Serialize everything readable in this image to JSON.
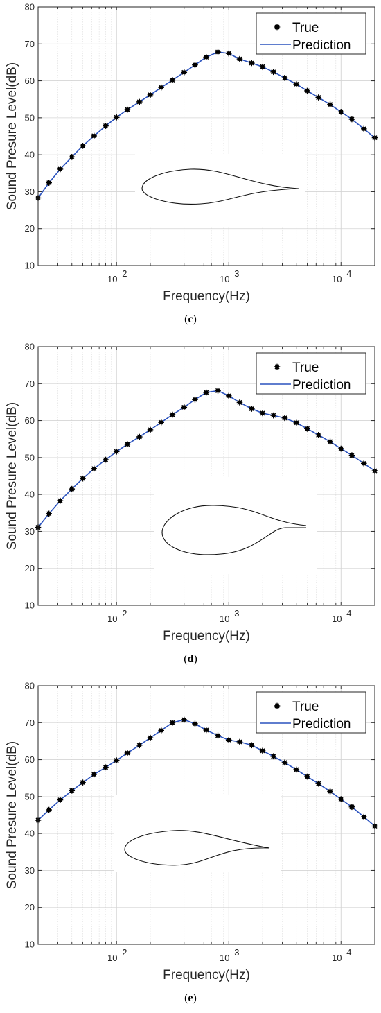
{
  "chart_data": [
    {
      "type": "line",
      "panel_label": "c",
      "xlabel": "Frequency(Hz)",
      "ylabel": "Sound Presure Level(dB)",
      "xscale": "log",
      "xlim": [
        20,
        20000
      ],
      "ylim": [
        10,
        80
      ],
      "yticks": [
        10,
        20,
        30,
        40,
        50,
        60,
        70,
        80
      ],
      "xticks": [
        {
          "value": 100,
          "label": "10",
          "exp": "2"
        },
        {
          "value": 1000,
          "label": "10",
          "exp": "3"
        },
        {
          "value": 10000,
          "label": "10",
          "exp": "4"
        }
      ],
      "grid": true,
      "legend_position": "top-right",
      "x": [
        20,
        25,
        31.5,
        40,
        50,
        63,
        80,
        100,
        125,
        160,
        200,
        250,
        315,
        400,
        500,
        630,
        800,
        1000,
        1250,
        1600,
        2000,
        2500,
        3150,
        4000,
        5000,
        6300,
        8000,
        10000,
        12500,
        16000,
        20000
      ],
      "series": [
        {
          "name": "True",
          "style": "markers",
          "color": "#000000",
          "values": [
            28.3,
            32.4,
            36.1,
            39.4,
            42.4,
            45.1,
            47.8,
            50.1,
            52.2,
            54.3,
            56.2,
            58.2,
            60.2,
            62.3,
            64.3,
            66.4,
            67.8,
            67.4,
            65.9,
            64.8,
            63.8,
            62.4,
            60.8,
            59.1,
            57.3,
            55.5,
            53.6,
            51.6,
            49.6,
            47.0,
            44.6
          ]
        },
        {
          "name": "Prediction",
          "style": "line",
          "color": "#2a52be",
          "values": [
            28.3,
            32.4,
            36.1,
            39.4,
            42.4,
            45.1,
            47.8,
            50.1,
            52.2,
            54.3,
            56.2,
            58.2,
            60.2,
            62.3,
            64.3,
            66.4,
            67.8,
            67.4,
            65.9,
            64.8,
            63.8,
            62.4,
            60.8,
            59.1,
            57.3,
            55.5,
            53.6,
            51.6,
            49.6,
            47.0,
            44.6
          ]
        }
      ]
    },
    {
      "type": "line",
      "panel_label": "d",
      "xlabel": "Frequency(Hz)",
      "ylabel": "Sound Presure Level(dB)",
      "xscale": "log",
      "xlim": [
        20,
        20000
      ],
      "ylim": [
        10,
        80
      ],
      "yticks": [
        10,
        20,
        30,
        40,
        50,
        60,
        70,
        80
      ],
      "xticks": [
        {
          "value": 100,
          "label": "10",
          "exp": "2"
        },
        {
          "value": 1000,
          "label": "10",
          "exp": "3"
        },
        {
          "value": 10000,
          "label": "10",
          "exp": "4"
        }
      ],
      "grid": true,
      "legend_position": "top-right",
      "x": [
        20,
        25,
        31.5,
        40,
        50,
        63,
        80,
        100,
        125,
        160,
        200,
        250,
        315,
        400,
        500,
        630,
        800,
        1000,
        1250,
        1600,
        2000,
        2500,
        3150,
        4000,
        5000,
        6300,
        8000,
        10000,
        12500,
        16000,
        20000
      ],
      "series": [
        {
          "name": "True",
          "style": "markers",
          "color": "#000000",
          "values": [
            31.1,
            34.8,
            38.3,
            41.5,
            44.3,
            47.0,
            49.4,
            51.6,
            53.6,
            55.6,
            57.5,
            59.5,
            61.6,
            63.6,
            65.7,
            67.6,
            68.1,
            66.7,
            64.9,
            63.2,
            62.0,
            61.4,
            60.7,
            59.4,
            57.8,
            56.1,
            54.3,
            52.4,
            50.6,
            48.4,
            46.4
          ]
        },
        {
          "name": "Prediction",
          "style": "line",
          "color": "#2a52be",
          "values": [
            31.1,
            34.8,
            38.3,
            41.5,
            44.3,
            47.0,
            49.4,
            51.6,
            53.6,
            55.6,
            57.5,
            59.5,
            61.6,
            63.6,
            65.7,
            67.6,
            68.1,
            66.7,
            64.9,
            63.2,
            62.0,
            61.4,
            60.7,
            59.4,
            57.8,
            56.1,
            54.3,
            52.4,
            50.6,
            48.4,
            46.4
          ]
        }
      ]
    },
    {
      "type": "line",
      "panel_label": "e",
      "xlabel": "Frequency(Hz)",
      "ylabel": "Sound Presure Level(dB)",
      "xscale": "log",
      "xlim": [
        20,
        20000
      ],
      "ylim": [
        10,
        80
      ],
      "yticks": [
        10,
        20,
        30,
        40,
        50,
        60,
        70,
        80
      ],
      "xticks": [
        {
          "value": 100,
          "label": "10",
          "exp": "2"
        },
        {
          "value": 1000,
          "label": "10",
          "exp": "3"
        },
        {
          "value": 10000,
          "label": "10",
          "exp": "4"
        }
      ],
      "grid": true,
      "legend_position": "top-right",
      "x": [
        20,
        25,
        31.5,
        40,
        50,
        63,
        80,
        100,
        125,
        160,
        200,
        250,
        315,
        400,
        500,
        630,
        800,
        1000,
        1250,
        1600,
        2000,
        2500,
        3150,
        4000,
        5000,
        6300,
        8000,
        10000,
        12500,
        16000,
        20000
      ],
      "series": [
        {
          "name": "True",
          "style": "markers",
          "color": "#000000",
          "values": [
            43.6,
            46.4,
            49.1,
            51.6,
            53.8,
            56.0,
            57.9,
            59.8,
            61.8,
            63.9,
            65.9,
            67.9,
            70.0,
            70.8,
            69.7,
            68.0,
            66.5,
            65.3,
            64.8,
            63.9,
            62.4,
            60.9,
            59.2,
            57.3,
            55.4,
            53.5,
            51.4,
            49.3,
            47.2,
            44.5,
            42.0
          ]
        },
        {
          "name": "Prediction",
          "style": "line",
          "color": "#2a52be",
          "values": [
            43.6,
            46.4,
            49.1,
            51.6,
            53.8,
            56.0,
            57.9,
            59.8,
            61.8,
            63.9,
            65.9,
            67.9,
            70.0,
            70.8,
            69.7,
            68.0,
            66.5,
            65.3,
            64.8,
            63.9,
            62.4,
            60.9,
            59.2,
            57.3,
            55.4,
            53.5,
            51.4,
            49.3,
            47.2,
            44.5,
            42.0
          ]
        }
      ]
    }
  ]
}
